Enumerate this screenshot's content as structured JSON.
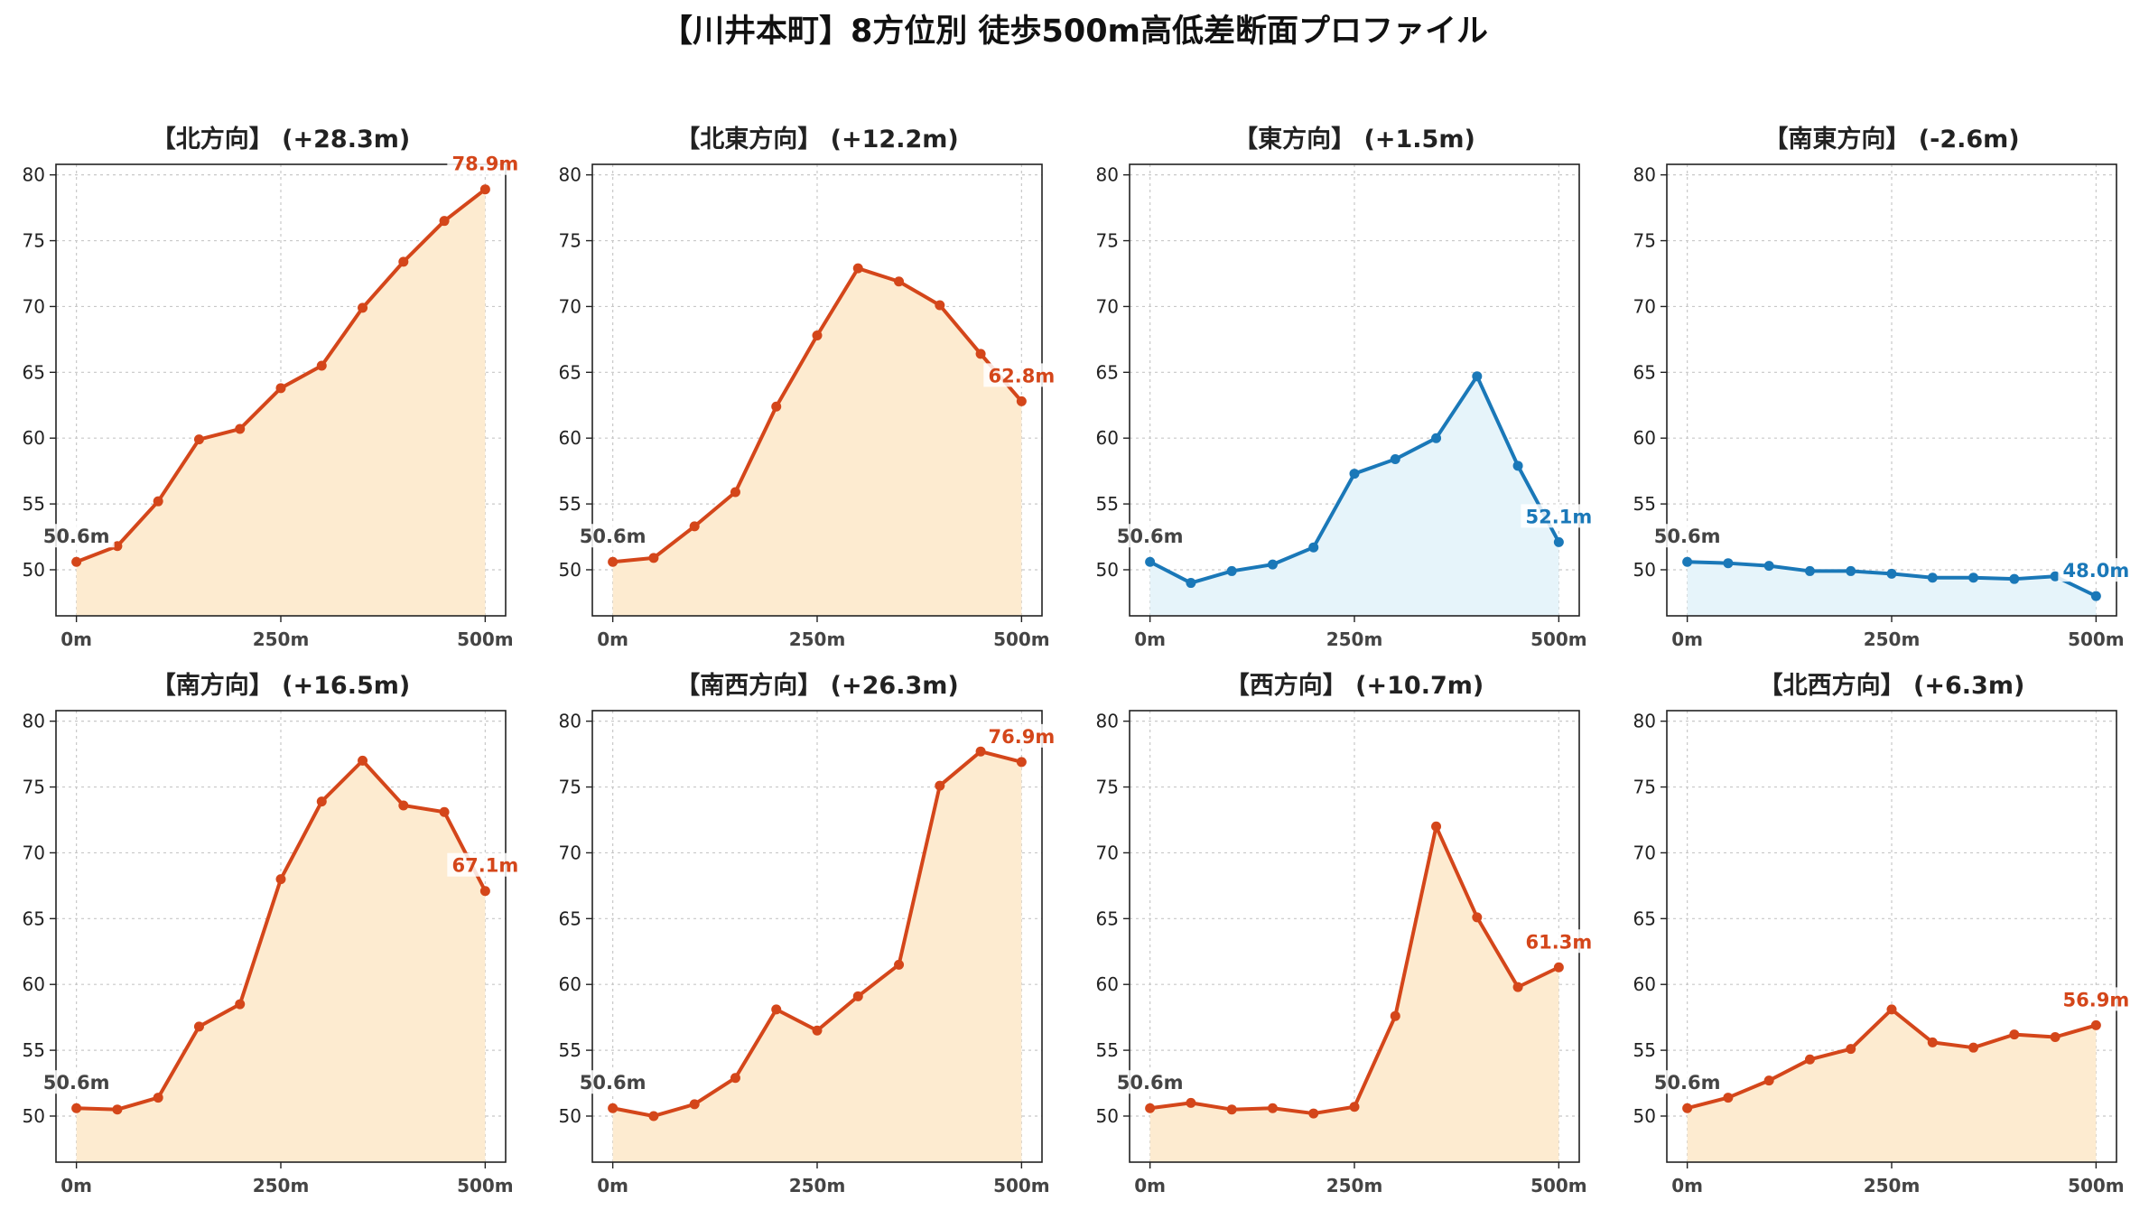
{
  "title": "【川井本町】8方位別 徒歩500m高低差断面プロファイル",
  "colors": {
    "up_line": "#d4461a",
    "up_fill": "#fdebd0",
    "down_line": "#1a78b8",
    "down_fill": "#e6f4fa",
    "start_label": "#444444",
    "grid": "#c8c8c8"
  },
  "chart_data": [
    {
      "type": "area",
      "title": "【北方向】 (+28.3m)",
      "trend": "up",
      "x": [
        0,
        50,
        100,
        150,
        200,
        250,
        300,
        350,
        400,
        450,
        500
      ],
      "y": [
        50.6,
        51.8,
        55.2,
        59.9,
        60.7,
        63.8,
        65.5,
        69.9,
        73.4,
        76.5,
        78.9
      ],
      "start_label": "50.6m",
      "end_label": "78.9m",
      "ylim": [
        46.5,
        80.8
      ],
      "yticks": [
        50,
        55,
        60,
        65,
        70,
        75,
        80
      ],
      "xticks": [
        0,
        250,
        500
      ],
      "xtick_labels": [
        "0m",
        "250m",
        "500m"
      ],
      "grid": true
    },
    {
      "type": "area",
      "title": "【北東方向】 (+12.2m)",
      "trend": "up",
      "x": [
        0,
        50,
        100,
        150,
        200,
        250,
        300,
        350,
        400,
        450,
        500
      ],
      "y": [
        50.6,
        50.9,
        53.3,
        55.9,
        62.4,
        67.8,
        72.9,
        71.9,
        70.1,
        66.4,
        62.8
      ],
      "start_label": "50.6m",
      "end_label": "62.8m",
      "ylim": [
        46.5,
        80.8
      ],
      "yticks": [
        50,
        55,
        60,
        65,
        70,
        75,
        80
      ],
      "xticks": [
        0,
        250,
        500
      ],
      "xtick_labels": [
        "0m",
        "250m",
        "500m"
      ],
      "grid": true
    },
    {
      "type": "area",
      "title": "【東方向】 (+1.5m)",
      "trend": "down",
      "x": [
        0,
        50,
        100,
        150,
        200,
        250,
        300,
        350,
        400,
        450,
        500
      ],
      "y": [
        50.6,
        49.0,
        49.9,
        50.4,
        51.7,
        57.3,
        58.4,
        60.0,
        64.7,
        57.9,
        52.1
      ],
      "start_label": "50.6m",
      "end_label": "52.1m",
      "ylim": [
        46.5,
        80.8
      ],
      "yticks": [
        50,
        55,
        60,
        65,
        70,
        75,
        80
      ],
      "xticks": [
        0,
        250,
        500
      ],
      "xtick_labels": [
        "0m",
        "250m",
        "500m"
      ],
      "grid": true
    },
    {
      "type": "area",
      "title": "【南東方向】 (-2.6m)",
      "trend": "down",
      "x": [
        0,
        50,
        100,
        150,
        200,
        250,
        300,
        350,
        400,
        450,
        500
      ],
      "y": [
        50.6,
        50.5,
        50.3,
        49.9,
        49.9,
        49.7,
        49.4,
        49.4,
        49.3,
        49.5,
        48.0
      ],
      "start_label": "50.6m",
      "end_label": "48.0m",
      "ylim": [
        46.5,
        80.8
      ],
      "yticks": [
        50,
        55,
        60,
        65,
        70,
        75,
        80
      ],
      "xticks": [
        0,
        250,
        500
      ],
      "xtick_labels": [
        "0m",
        "250m",
        "500m"
      ],
      "grid": true
    },
    {
      "type": "area",
      "title": "【南方向】 (+16.5m)",
      "trend": "up",
      "x": [
        0,
        50,
        100,
        150,
        200,
        250,
        300,
        350,
        400,
        450,
        500
      ],
      "y": [
        50.6,
        50.5,
        51.4,
        56.8,
        58.5,
        68.0,
        73.9,
        77.0,
        73.6,
        73.1,
        67.1
      ],
      "start_label": "50.6m",
      "end_label": "67.1m",
      "ylim": [
        46.5,
        80.8
      ],
      "yticks": [
        50,
        55,
        60,
        65,
        70,
        75,
        80
      ],
      "xticks": [
        0,
        250,
        500
      ],
      "xtick_labels": [
        "0m",
        "250m",
        "500m"
      ],
      "grid": true
    },
    {
      "type": "area",
      "title": "【南西方向】 (+26.3m)",
      "trend": "up",
      "x": [
        0,
        50,
        100,
        150,
        200,
        250,
        300,
        350,
        400,
        450,
        500
      ],
      "y": [
        50.6,
        50.0,
        50.9,
        52.9,
        58.1,
        56.5,
        59.1,
        61.5,
        75.1,
        77.7,
        76.9
      ],
      "start_label": "50.6m",
      "end_label": "76.9m",
      "ylim": [
        46.5,
        80.8
      ],
      "yticks": [
        50,
        55,
        60,
        65,
        70,
        75,
        80
      ],
      "xticks": [
        0,
        250,
        500
      ],
      "xtick_labels": [
        "0m",
        "250m",
        "500m"
      ],
      "grid": true
    },
    {
      "type": "area",
      "title": "【西方向】 (+10.7m)",
      "trend": "up",
      "x": [
        0,
        50,
        100,
        150,
        200,
        250,
        300,
        350,
        400,
        450,
        500
      ],
      "y": [
        50.6,
        51.0,
        50.5,
        50.6,
        50.2,
        50.7,
        57.6,
        72.0,
        65.1,
        59.8,
        61.3
      ],
      "start_label": "50.6m",
      "end_label": "61.3m",
      "ylim": [
        46.5,
        80.8
      ],
      "yticks": [
        50,
        55,
        60,
        65,
        70,
        75,
        80
      ],
      "xticks": [
        0,
        250,
        500
      ],
      "xtick_labels": [
        "0m",
        "250m",
        "500m"
      ],
      "grid": true
    },
    {
      "type": "area",
      "title": "【北西方向】 (+6.3m)",
      "trend": "up",
      "x": [
        0,
        50,
        100,
        150,
        200,
        250,
        300,
        350,
        400,
        450,
        500
      ],
      "y": [
        50.6,
        51.4,
        52.7,
        54.3,
        55.1,
        58.1,
        55.6,
        55.2,
        56.2,
        56.0,
        56.9
      ],
      "start_label": "50.6m",
      "end_label": "56.9m",
      "ylim": [
        46.5,
        80.8
      ],
      "yticks": [
        50,
        55,
        60,
        65,
        70,
        75,
        80
      ],
      "xticks": [
        0,
        250,
        500
      ],
      "xtick_labels": [
        "0m",
        "250m",
        "500m"
      ],
      "grid": true
    }
  ]
}
